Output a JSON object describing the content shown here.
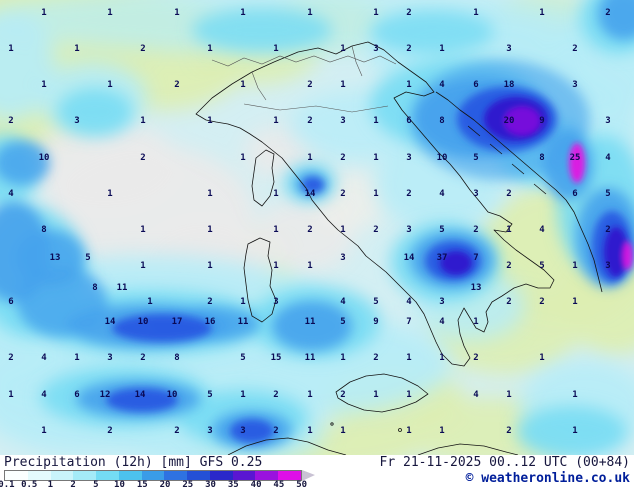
{
  "footer": {
    "title": "Precipitation (12h) [mm] GFS 0.25",
    "datetime": "Fr 21-11-2025 00..12 UTC (00+84)",
    "copyright": "© weatheronline.co.uk"
  },
  "legend": {
    "unit": "mm",
    "ticks": [
      "0.1",
      "0.5",
      "1",
      "2",
      "5",
      "10",
      "15",
      "20",
      "25",
      "30",
      "35",
      "40",
      "45",
      "50"
    ],
    "colors": [
      "#fbffff",
      "#e4fbfd",
      "#c9f4fb",
      "#a4ebf8",
      "#74dcf4",
      "#4cc2ee",
      "#3a9ce8",
      "#2e72e2",
      "#2450d6",
      "#2a28ca",
      "#5a16d2",
      "#9a12de",
      "#df0ee8"
    ],
    "arrow_color": "#c9c2d4"
  },
  "map": {
    "value_color": "#0a0a55",
    "values": [
      [
        44,
        13,
        "1"
      ],
      [
        110,
        13,
        "1"
      ],
      [
        177,
        13,
        "1"
      ],
      [
        243,
        13,
        "1"
      ],
      [
        310,
        13,
        "1"
      ],
      [
        376,
        13,
        "1"
      ],
      [
        409,
        13,
        "2"
      ],
      [
        476,
        13,
        "1"
      ],
      [
        542,
        13,
        "1"
      ],
      [
        608,
        13,
        "2"
      ],
      [
        11,
        49,
        "1"
      ],
      [
        77,
        49,
        "1"
      ],
      [
        143,
        49,
        "2"
      ],
      [
        210,
        49,
        "1"
      ],
      [
        276,
        49,
        "1"
      ],
      [
        343,
        49,
        "1"
      ],
      [
        376,
        49,
        "3"
      ],
      [
        409,
        49,
        "2"
      ],
      [
        442,
        49,
        "1"
      ],
      [
        509,
        49,
        "3"
      ],
      [
        575,
        49,
        "2"
      ],
      [
        44,
        85,
        "1"
      ],
      [
        110,
        85,
        "1"
      ],
      [
        177,
        85,
        "2"
      ],
      [
        243,
        85,
        "1"
      ],
      [
        310,
        85,
        "2"
      ],
      [
        343,
        85,
        "1"
      ],
      [
        409,
        85,
        "1"
      ],
      [
        442,
        85,
        "4"
      ],
      [
        476,
        85,
        "6"
      ],
      [
        509,
        85,
        "18"
      ],
      [
        575,
        85,
        "3"
      ],
      [
        11,
        121,
        "2"
      ],
      [
        77,
        121,
        "3"
      ],
      [
        143,
        121,
        "1"
      ],
      [
        210,
        121,
        "1"
      ],
      [
        276,
        121,
        "1"
      ],
      [
        310,
        121,
        "2"
      ],
      [
        343,
        121,
        "3"
      ],
      [
        376,
        121,
        "1"
      ],
      [
        409,
        121,
        "6"
      ],
      [
        442,
        121,
        "8"
      ],
      [
        509,
        121,
        "20"
      ],
      [
        542,
        121,
        "9"
      ],
      [
        608,
        121,
        "3"
      ],
      [
        44,
        158,
        "10"
      ],
      [
        143,
        158,
        "2"
      ],
      [
        243,
        158,
        "1"
      ],
      [
        310,
        158,
        "1"
      ],
      [
        343,
        158,
        "2"
      ],
      [
        376,
        158,
        "1"
      ],
      [
        409,
        158,
        "3"
      ],
      [
        442,
        158,
        "10"
      ],
      [
        476,
        158,
        "5"
      ],
      [
        542,
        158,
        "8"
      ],
      [
        575,
        158,
        "25"
      ],
      [
        608,
        158,
        "4"
      ],
      [
        11,
        194,
        "4"
      ],
      [
        110,
        194,
        "1"
      ],
      [
        210,
        194,
        "1"
      ],
      [
        276,
        194,
        "1"
      ],
      [
        310,
        194,
        "14"
      ],
      [
        343,
        194,
        "2"
      ],
      [
        376,
        194,
        "1"
      ],
      [
        409,
        194,
        "2"
      ],
      [
        442,
        194,
        "4"
      ],
      [
        476,
        194,
        "3"
      ],
      [
        509,
        194,
        "2"
      ],
      [
        575,
        194,
        "6"
      ],
      [
        608,
        194,
        "5"
      ],
      [
        44,
        230,
        "8"
      ],
      [
        143,
        230,
        "1"
      ],
      [
        210,
        230,
        "1"
      ],
      [
        276,
        230,
        "1"
      ],
      [
        310,
        230,
        "2"
      ],
      [
        343,
        230,
        "1"
      ],
      [
        376,
        230,
        "2"
      ],
      [
        409,
        230,
        "3"
      ],
      [
        442,
        230,
        "5"
      ],
      [
        476,
        230,
        "2"
      ],
      [
        509,
        230,
        "1"
      ],
      [
        542,
        230,
        "4"
      ],
      [
        608,
        230,
        "2"
      ],
      [
        55,
        258,
        "13"
      ],
      [
        88,
        258,
        "5"
      ],
      [
        343,
        258,
        "3"
      ],
      [
        409,
        258,
        "14"
      ],
      [
        442,
        258,
        "37"
      ],
      [
        476,
        258,
        "7"
      ],
      [
        143,
        266,
        "1"
      ],
      [
        210,
        266,
        "1"
      ],
      [
        276,
        266,
        "1"
      ],
      [
        310,
        266,
        "1"
      ],
      [
        509,
        266,
        "2"
      ],
      [
        542,
        266,
        "5"
      ],
      [
        575,
        266,
        "1"
      ],
      [
        608,
        266,
        "3"
      ],
      [
        95,
        288,
        "8"
      ],
      [
        122,
        288,
        "11"
      ],
      [
        476,
        288,
        "13"
      ],
      [
        11,
        302,
        "6"
      ],
      [
        150,
        302,
        "1"
      ],
      [
        210,
        302,
        "2"
      ],
      [
        243,
        302,
        "1"
      ],
      [
        276,
        302,
        "3"
      ],
      [
        343,
        302,
        "4"
      ],
      [
        376,
        302,
        "5"
      ],
      [
        409,
        302,
        "4"
      ],
      [
        442,
        302,
        "3"
      ],
      [
        509,
        302,
        "2"
      ],
      [
        542,
        302,
        "2"
      ],
      [
        575,
        302,
        "1"
      ],
      [
        110,
        322,
        "14"
      ],
      [
        143,
        322,
        "10"
      ],
      [
        177,
        322,
        "17"
      ],
      [
        210,
        322,
        "16"
      ],
      [
        243,
        322,
        "11"
      ],
      [
        310,
        322,
        "11"
      ],
      [
        343,
        322,
        "5"
      ],
      [
        376,
        322,
        "9"
      ],
      [
        409,
        322,
        "7"
      ],
      [
        442,
        322,
        "4"
      ],
      [
        476,
        322,
        "1"
      ],
      [
        11,
        358,
        "2"
      ],
      [
        44,
        358,
        "4"
      ],
      [
        77,
        358,
        "1"
      ],
      [
        110,
        358,
        "3"
      ],
      [
        143,
        358,
        "2"
      ],
      [
        177,
        358,
        "8"
      ],
      [
        243,
        358,
        "5"
      ],
      [
        276,
        358,
        "15"
      ],
      [
        310,
        358,
        "11"
      ],
      [
        343,
        358,
        "1"
      ],
      [
        376,
        358,
        "2"
      ],
      [
        409,
        358,
        "1"
      ],
      [
        442,
        358,
        "1"
      ],
      [
        476,
        358,
        "2"
      ],
      [
        542,
        358,
        "1"
      ],
      [
        11,
        395,
        "1"
      ],
      [
        44,
        395,
        "4"
      ],
      [
        77,
        395,
        "6"
      ],
      [
        105,
        395,
        "12"
      ],
      [
        140,
        395,
        "14"
      ],
      [
        172,
        395,
        "10"
      ],
      [
        210,
        395,
        "5"
      ],
      [
        243,
        395,
        "1"
      ],
      [
        276,
        395,
        "2"
      ],
      [
        310,
        395,
        "1"
      ],
      [
        343,
        395,
        "2"
      ],
      [
        376,
        395,
        "1"
      ],
      [
        409,
        395,
        "1"
      ],
      [
        476,
        395,
        "4"
      ],
      [
        509,
        395,
        "1"
      ],
      [
        575,
        395,
        "1"
      ],
      [
        44,
        431,
        "1"
      ],
      [
        110,
        431,
        "2"
      ],
      [
        177,
        431,
        "2"
      ],
      [
        210,
        431,
        "3"
      ],
      [
        243,
        431,
        "3"
      ],
      [
        276,
        431,
        "2"
      ],
      [
        310,
        431,
        "1"
      ],
      [
        343,
        431,
        "1"
      ],
      [
        409,
        431,
        "1"
      ],
      [
        442,
        431,
        "1"
      ],
      [
        509,
        431,
        "2"
      ],
      [
        575,
        431,
        "1"
      ]
    ]
  }
}
